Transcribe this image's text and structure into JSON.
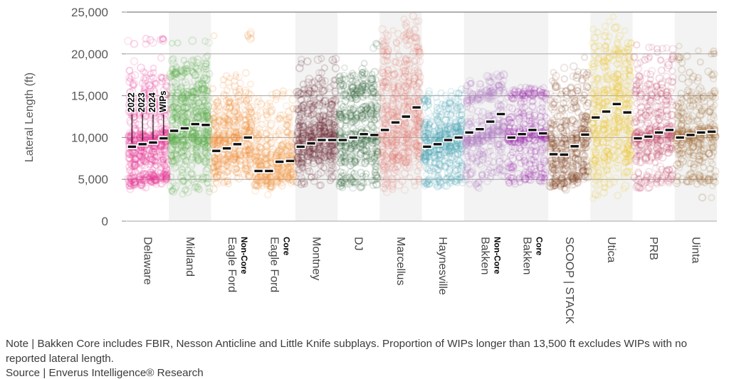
{
  "figure": {
    "ylabel": "Lateral Length (ft)",
    "note": "Note | Bakken Core includes FBIR, Nesson Anticline and Little Knife subplays. Proportion of WIPs longer than 13,500 ft excludes WIPs with no reported lateral length.",
    "source": "Source | Enverus Intelligence® Research"
  },
  "chart_data": {
    "type": "scatter",
    "variant": "strip-plot-with-medians",
    "title": "",
    "xlabel": "",
    "ylabel": "Lateral Length (ft)",
    "ylim": [
      0,
      25000
    ],
    "yticks": [
      0,
      5000,
      10000,
      15000,
      20000,
      25000
    ],
    "ytick_labels": [
      "0",
      "5,000",
      "10,000",
      "15,000",
      "20,000",
      "25,000"
    ],
    "grid": true,
    "legend": "none",
    "series_labels": [
      "2022",
      "2023",
      "2024",
      "WIPs"
    ],
    "annotation_note": "Each play shows four jittered columns (2022, 2023, 2024, WIPs); black dashes mark median lateral length",
    "band_color": "#f2f3f2",
    "grid_color": "#a6a6a6",
    "median_color": "#111111",
    "plays": [
      {
        "name": "Delaware",
        "sublabel": "",
        "color": "#e73895",
        "band": false,
        "annotate": true,
        "medians": [
          8900,
          9200,
          9400,
          9900
        ],
        "cloud": {
          "n": 170,
          "min": 2600,
          "max": 21900,
          "clusters": [
            [
              5000,
              350,
              18
            ],
            [
              7600,
              900,
              22
            ],
            [
              9800,
              650,
              30
            ],
            [
              12800,
              700,
              12
            ],
            [
              14800,
              800,
              10
            ],
            [
              16500,
              900,
              5
            ],
            [
              19000,
              1200,
              1.5
            ],
            [
              21600,
              250,
              1.5
            ]
          ]
        }
      },
      {
        "name": "Midland",
        "sublabel": "",
        "color": "#5aad49",
        "band": true,
        "annotate": false,
        "medians": [
          10800,
          11100,
          11600,
          11500
        ],
        "cloud": {
          "n": 160,
          "min": 2900,
          "max": 21600,
          "clusters": [
            [
              7800,
              900,
              16
            ],
            [
              10000,
              700,
              26
            ],
            [
              12800,
              800,
              22
            ],
            [
              15200,
              700,
              14
            ],
            [
              17800,
              900,
              13
            ],
            [
              5000,
              700,
              7
            ],
            [
              21400,
              200,
              1
            ],
            [
              3500,
              300,
              1
            ]
          ]
        }
      },
      {
        "name": "Eagle Ford",
        "sublabel": "Non-Core",
        "color": "#ef913e",
        "band": false,
        "annotate": false,
        "medians": [
          8400,
          8700,
          9200,
          10000
        ],
        "cloud": {
          "n": 120,
          "min": 3600,
          "max": 22700,
          "clusters": [
            [
              7500,
              800,
              28
            ],
            [
              9900,
              700,
              30
            ],
            [
              12000,
              900,
              20
            ],
            [
              14500,
              900,
              12
            ],
            [
              5500,
              600,
              6
            ],
            [
              17000,
              800,
              3
            ],
            [
              21800,
              600,
              1
            ]
          ]
        }
      },
      {
        "name": "Eagle Ford",
        "sublabel": "Core",
        "color": "#f19a4b",
        "band": false,
        "annotate": false,
        "medians": [
          6000,
          6000,
          7100,
          7200
        ],
        "cloud": {
          "n": 110,
          "min": 2800,
          "max": 15600,
          "clusters": [
            [
              5000,
              500,
              26
            ],
            [
              6600,
              600,
              30
            ],
            [
              8200,
              700,
              22
            ],
            [
              10500,
              900,
              12
            ],
            [
              12500,
              800,
              7
            ],
            [
              14600,
              500,
              3
            ]
          ]
        }
      },
      {
        "name": "Montney",
        "sublabel": "",
        "color": "#6d2b35",
        "band": true,
        "annotate": false,
        "medians": [
          8900,
          9300,
          9700,
          9700
        ],
        "cloud": {
          "n": 130,
          "min": 3300,
          "max": 19800,
          "clusters": [
            [
              8000,
              800,
              24
            ],
            [
              9700,
              600,
              28
            ],
            [
              11500,
              800,
              20
            ],
            [
              13800,
              900,
              13
            ],
            [
              15800,
              700,
              8
            ],
            [
              5500,
              800,
              5
            ],
            [
              18500,
              700,
              2
            ]
          ]
        }
      },
      {
        "name": "DJ",
        "sublabel": "",
        "color": "#32663a",
        "band": false,
        "annotate": false,
        "medians": [
          9700,
          10000,
          10400,
          10300
        ],
        "cloud": {
          "n": 120,
          "min": 3900,
          "max": 21300,
          "clusters": [
            [
              9800,
              700,
              30
            ],
            [
              12800,
              700,
              20
            ],
            [
              15500,
              700,
              14
            ],
            [
              7500,
              600,
              14
            ],
            [
              4800,
              500,
              10
            ],
            [
              17500,
              700,
              7
            ],
            [
              6300,
              400,
              4
            ],
            [
              20800,
              300,
              1
            ]
          ]
        }
      },
      {
        "name": "Marcellus",
        "sublabel": "",
        "color": "#e48079",
        "band": true,
        "annotate": false,
        "medians": [
          10900,
          11800,
          12500,
          13600
        ],
        "cloud": {
          "n": 150,
          "min": 3100,
          "max": 24900,
          "clusters": [
            [
              7500,
              1200,
              20
            ],
            [
              10500,
              1200,
              27
            ],
            [
              13500,
              1300,
              20
            ],
            [
              16500,
              1300,
              13
            ],
            [
              19500,
              1300,
              10
            ],
            [
              22200,
              1200,
              6
            ],
            [
              5000,
              800,
              4
            ]
          ]
        }
      },
      {
        "name": "Haynesville",
        "sublabel": "",
        "color": "#4ba4b2",
        "band": false,
        "annotate": false,
        "medians": [
          8900,
          9200,
          9700,
          10000
        ],
        "cloud": {
          "n": 120,
          "min": 4100,
          "max": 15800,
          "clusters": [
            [
              9000,
              800,
              28
            ],
            [
              10800,
              700,
              24
            ],
            [
              8000,
              600,
              12
            ],
            [
              12800,
              900,
              12
            ],
            [
              14800,
              500,
              6
            ],
            [
              4800,
              400,
              11
            ],
            [
              6300,
              500,
              7
            ]
          ]
        }
      },
      {
        "name": "Bakken",
        "sublabel": "Non-Core",
        "color": "#b380c4",
        "band": true,
        "annotate": false,
        "medians": [
          10600,
          11000,
          11900,
          12800
        ],
        "cloud": {
          "n": 110,
          "min": 3900,
          "max": 17600,
          "clusters": [
            [
              10300,
              450,
              34
            ],
            [
              15200,
              450,
              22
            ],
            [
              12500,
              800,
              12
            ],
            [
              8500,
              700,
              10
            ],
            [
              5200,
              500,
              10
            ],
            [
              6800,
              600,
              6
            ],
            [
              16800,
              400,
              6
            ]
          ]
        }
      },
      {
        "name": "Bakken",
        "sublabel": "Core",
        "color": "#a136b0",
        "band": true,
        "annotate": false,
        "medians": [
          10000,
          10400,
          10900,
          10500
        ],
        "cloud": {
          "n": 100,
          "min": 4400,
          "max": 16100,
          "clusters": [
            [
              10200,
              400,
              46
            ],
            [
              15200,
              400,
              16
            ],
            [
              12000,
              700,
              10
            ],
            [
              8500,
              600,
              8
            ],
            [
              5200,
              400,
              11
            ],
            [
              6800,
              500,
              5
            ],
            [
              13800,
              400,
              4
            ]
          ]
        }
      },
      {
        "name": "SCOOP | STACK",
        "sublabel": "",
        "color": "#8a5130",
        "band": false,
        "annotate": false,
        "medians": [
          8000,
          7950,
          8950,
          10350
        ],
        "cloud": {
          "n": 120,
          "min": 3100,
          "max": 19600,
          "clusters": [
            [
              5000,
              400,
              19
            ],
            [
              8000,
              900,
              24
            ],
            [
              9900,
              500,
              22
            ],
            [
              12000,
              900,
              13
            ],
            [
              14500,
              900,
              10
            ],
            [
              6500,
              500,
              8
            ],
            [
              17000,
              900,
              4
            ]
          ]
        }
      },
      {
        "name": "Utica",
        "sublabel": "",
        "color": "#eec52f",
        "band": true,
        "annotate": false,
        "medians": [
          12400,
          13100,
          14000,
          13000
        ],
        "cloud": {
          "n": 130,
          "min": 2600,
          "max": 24600,
          "clusters": [
            [
              8500,
              1100,
              19
            ],
            [
              11500,
              1100,
              22
            ],
            [
              14200,
              1100,
              20
            ],
            [
              17000,
              1100,
              15
            ],
            [
              19800,
              1000,
              11
            ],
            [
              6000,
              900,
              8
            ],
            [
              22500,
              900,
              4
            ],
            [
              3600,
              500,
              1
            ]
          ]
        }
      },
      {
        "name": "PRB",
        "sublabel": "",
        "color": "#c04a67",
        "band": false,
        "annotate": false,
        "medians": [
          9900,
          10100,
          10600,
          10900
        ],
        "cloud": {
          "n": 110,
          "min": 3900,
          "max": 21100,
          "clusters": [
            [
              10200,
              600,
              40
            ],
            [
              12800,
              800,
              14
            ],
            [
              15000,
              700,
              10
            ],
            [
              8000,
              600,
              12
            ],
            [
              5500,
              700,
              11
            ],
            [
              16800,
              700,
              6
            ],
            [
              19500,
              900,
              4
            ],
            [
              4300,
              300,
              3
            ]
          ]
        }
      },
      {
        "name": "Uinta",
        "sublabel": "",
        "color": "#a06a33",
        "band": true,
        "annotate": false,
        "medians": [
          10000,
          10300,
          10600,
          10700
        ],
        "cloud": {
          "n": 100,
          "min": 2600,
          "max": 21200,
          "clusters": [
            [
              10400,
              500,
              42
            ],
            [
              12800,
              700,
              13
            ],
            [
              14800,
              500,
              8
            ],
            [
              8500,
              600,
              12
            ],
            [
              5000,
              400,
              12
            ],
            [
              6800,
              500,
              6
            ],
            [
              17500,
              900,
              4
            ],
            [
              20000,
              700,
              2
            ],
            [
              2800,
              200,
              1
            ]
          ]
        }
      }
    ]
  }
}
